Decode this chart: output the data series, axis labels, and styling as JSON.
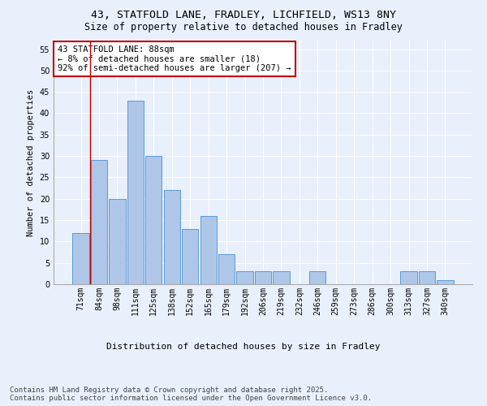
{
  "title_line1": "43, STATFOLD LANE, FRADLEY, LICHFIELD, WS13 8NY",
  "title_line2": "Size of property relative to detached houses in Fradley",
  "xlabel": "Distribution of detached houses by size in Fradley",
  "ylabel": "Number of detached properties",
  "categories": [
    "71sqm",
    "84sqm",
    "98sqm",
    "111sqm",
    "125sqm",
    "138sqm",
    "152sqm",
    "165sqm",
    "179sqm",
    "192sqm",
    "206sqm",
    "219sqm",
    "232sqm",
    "246sqm",
    "259sqm",
    "273sqm",
    "286sqm",
    "300sqm",
    "313sqm",
    "327sqm",
    "340sqm"
  ],
  "values": [
    12,
    29,
    20,
    43,
    30,
    22,
    13,
    16,
    7,
    3,
    3,
    3,
    0,
    3,
    0,
    0,
    0,
    0,
    3,
    3,
    1
  ],
  "bar_color": "#aec6e8",
  "bar_edge_color": "#5b9bd5",
  "highlight_color": "#c00000",
  "highlight_bar_index": 1,
  "annotation_text": "43 STATFOLD LANE: 88sqm\n← 8% of detached houses are smaller (18)\n92% of semi-detached houses are larger (207) →",
  "annotation_box_color": "white",
  "annotation_border_color": "#c00000",
  "ylim": [
    0,
    57
  ],
  "yticks": [
    0,
    5,
    10,
    15,
    20,
    25,
    30,
    35,
    40,
    45,
    50,
    55
  ],
  "background_color": "#e8f0fb",
  "plot_bg_color": "#e8f0fb",
  "grid_color": "white",
  "footer_text": "Contains HM Land Registry data © Crown copyright and database right 2025.\nContains public sector information licensed under the Open Government Licence v3.0.",
  "title_fontsize": 9.5,
  "subtitle_fontsize": 8.5,
  "xlabel_fontsize": 8,
  "ylabel_fontsize": 7.5,
  "tick_fontsize": 7,
  "annotation_fontsize": 7.5,
  "footer_fontsize": 6.5
}
